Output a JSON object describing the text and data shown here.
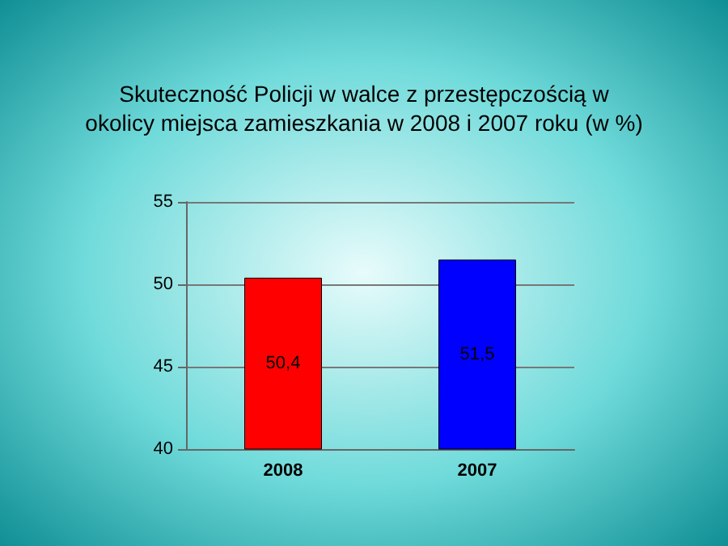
{
  "chart_data": {
    "type": "bar",
    "title": "Skuteczność Policji w walce z przestępczością w\nokolicy miejsca zamieszkania w 2008 i 2007 roku (w %)",
    "categories": [
      "2008",
      "2007"
    ],
    "values": [
      50.4,
      51.5
    ],
    "colors": [
      "#ff0000",
      "#0000ff"
    ],
    "value_labels": [
      "50,4",
      "51,5"
    ],
    "ylim": [
      40,
      55
    ],
    "yticks": [
      40,
      45,
      50,
      55
    ],
    "grid": "y"
  }
}
